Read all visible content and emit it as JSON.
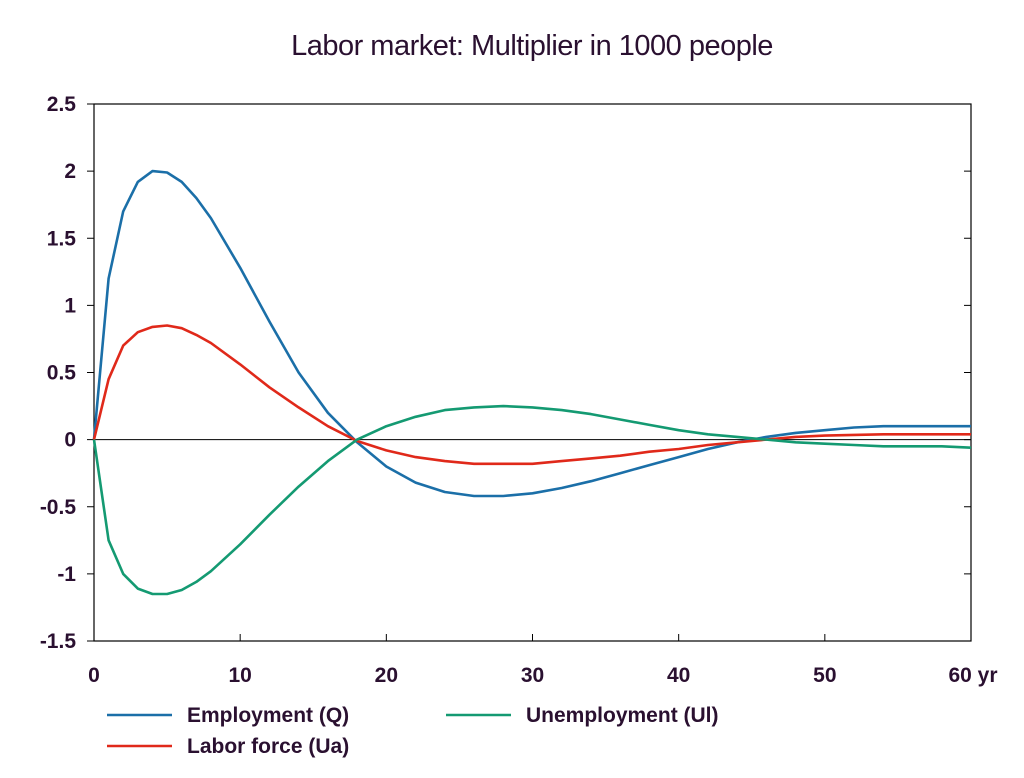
{
  "chart_data": {
    "type": "line",
    "title": "Labor market: Multiplier in 1000 people",
    "xlabel": "",
    "ylabel": "",
    "xlim": [
      0,
      60
    ],
    "ylim": [
      -1.5,
      2.5
    ],
    "x_ticks": [
      "0",
      "10",
      "20",
      "30",
      "40",
      "50",
      "60 yr"
    ],
    "x_tick_values": [
      0,
      10,
      20,
      30,
      40,
      50,
      60
    ],
    "y_ticks": [
      "2.5",
      "2",
      "1.5",
      "1",
      "0.5",
      "0",
      "-0.5",
      "-1",
      "-1.5"
    ],
    "y_tick_values": [
      2.5,
      2,
      1.5,
      1,
      0.5,
      0,
      -0.5,
      -1,
      -1.5
    ],
    "grid": false,
    "legend_position": "bottom",
    "x": [
      0,
      1,
      2,
      3,
      4,
      5,
      6,
      7,
      8,
      10,
      12,
      14,
      16,
      18,
      20,
      22,
      24,
      26,
      28,
      30,
      32,
      34,
      36,
      38,
      40,
      42,
      44,
      46,
      48,
      50,
      52,
      54,
      56,
      58,
      60
    ],
    "series": [
      {
        "name": "Employment (Q)",
        "color": "#1b6fa8",
        "values": [
          0,
          1.2,
          1.7,
          1.92,
          2.0,
          1.99,
          1.92,
          1.8,
          1.65,
          1.28,
          0.88,
          0.5,
          0.2,
          -0.02,
          -0.2,
          -0.32,
          -0.39,
          -0.42,
          -0.42,
          -0.4,
          -0.36,
          -0.31,
          -0.25,
          -0.19,
          -0.13,
          -0.07,
          -0.02,
          0.02,
          0.05,
          0.07,
          0.09,
          0.1,
          0.1,
          0.1,
          0.1
        ]
      },
      {
        "name": "Labor force (Ua)",
        "color": "#e0291a",
        "values": [
          0,
          0.45,
          0.7,
          0.8,
          0.84,
          0.85,
          0.83,
          0.78,
          0.72,
          0.56,
          0.39,
          0.24,
          0.1,
          -0.01,
          -0.08,
          -0.13,
          -0.16,
          -0.18,
          -0.18,
          -0.18,
          -0.16,
          -0.14,
          -0.12,
          -0.09,
          -0.07,
          -0.04,
          -0.02,
          0.0,
          0.02,
          0.03,
          0.035,
          0.04,
          0.04,
          0.04,
          0.04
        ]
      },
      {
        "name": "Unemployment (Ul)",
        "color": "#149a72",
        "values": [
          0,
          -0.75,
          -1.0,
          -1.11,
          -1.15,
          -1.15,
          -1.12,
          -1.06,
          -0.98,
          -0.78,
          -0.56,
          -0.35,
          -0.16,
          0.0,
          0.1,
          0.17,
          0.22,
          0.24,
          0.25,
          0.24,
          0.22,
          0.19,
          0.15,
          0.11,
          0.07,
          0.04,
          0.02,
          0.0,
          -0.02,
          -0.03,
          -0.04,
          -0.05,
          -0.05,
          -0.05,
          -0.06
        ]
      }
    ]
  }
}
